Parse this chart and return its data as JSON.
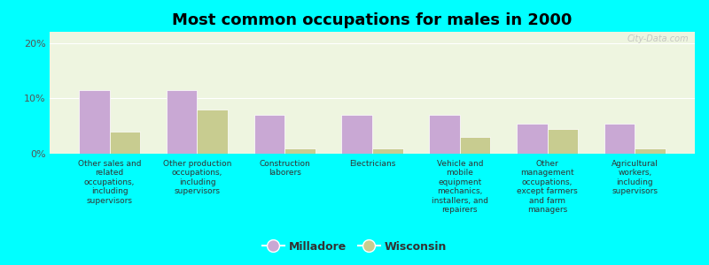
{
  "title": "Most common occupations for males in 2000",
  "categories": [
    "Other sales and\nrelated\noccupations,\nincluding\nsupervisors",
    "Other production\noccupations,\nincluding\nsupervisors",
    "Construction\nlaborers",
    "Electricians",
    "Vehicle and\nmobile\nequipment\nmechanics,\ninstallers, and\nrepairers",
    "Other\nmanagement\noccupations,\nexcept farmers\nand farm\nmanagers",
    "Agricultural\nworkers,\nincluding\nsupervisors"
  ],
  "milladore": [
    11.5,
    11.5,
    7.0,
    7.0,
    7.0,
    5.5,
    5.5
  ],
  "wisconsin": [
    4.0,
    8.0,
    1.0,
    1.0,
    3.0,
    4.5,
    1.0
  ],
  "milladore_color": "#c9a8d4",
  "wisconsin_color": "#c8cc90",
  "background_color": "#00ffff",
  "plot_bg_color": "#eef5e0",
  "ylabel_ticks": [
    "0%",
    "10%",
    "20%"
  ],
  "yticks": [
    0,
    10,
    20
  ],
  "ylim": [
    0,
    22
  ],
  "bar_width": 0.35,
  "legend_milladore": "Milladore",
  "legend_wisconsin": "Wisconsin",
  "watermark": "City-Data.com",
  "title_fontsize": 13,
  "tick_fontsize": 6.5,
  "ytick_fontsize": 8,
  "legend_fontsize": 9
}
